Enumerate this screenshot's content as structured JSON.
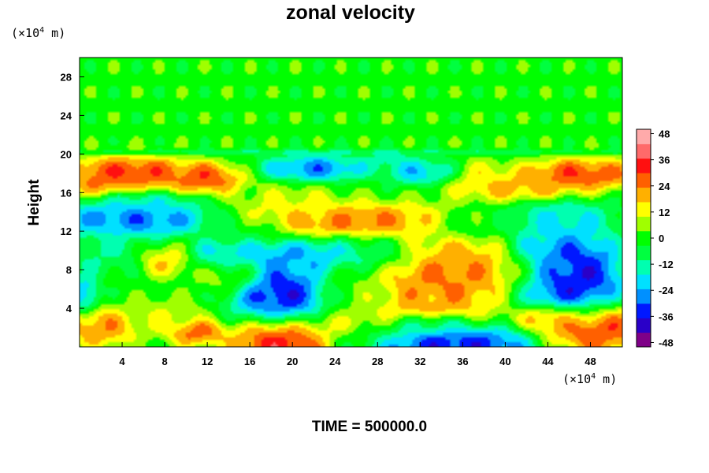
{
  "chart_data": {
    "type": "heatmap",
    "title": "zonal velocity",
    "ylabel": "Height",
    "xlabel": "",
    "x_unit": {
      "prefix": "(×10",
      "exp": "4",
      "suffix": " m)"
    },
    "y_unit": {
      "prefix": "(×10",
      "exp": "4",
      "suffix": " m)"
    },
    "xlim": [
      0,
      51
    ],
    "ylim": [
      0,
      30
    ],
    "xticks": [
      4,
      8,
      12,
      16,
      20,
      24,
      28,
      32,
      36,
      40,
      44,
      48
    ],
    "yticks": [
      4,
      8,
      12,
      16,
      20,
      24,
      28
    ],
    "colorbar": {
      "min": -50,
      "max": 50,
      "ticks": [
        48,
        36,
        24,
        12,
        0,
        -12,
        -24,
        -36,
        -48
      ],
      "colors": [
        "#7f0088",
        "#2a00c8",
        "#0018ff",
        "#0090ff",
        "#00e0ff",
        "#00ffb0",
        "#00ff40",
        "#00ff00",
        "#a0ff00",
        "#ffff00",
        "#ffb000",
        "#ff6000",
        "#ff1010",
        "#ff6a6a",
        "#ffaaaa"
      ]
    },
    "field": {
      "background": 0,
      "x_scale": 7,
      "y_scale": 0.7,
      "blobs": [
        {
          "x": 24,
          "y": 26,
          "rx": 40,
          "ry": 6,
          "v": 0
        },
        {
          "x": 5,
          "y": 18.2,
          "rx": 4.5,
          "ry": 1.4,
          "v": 44
        },
        {
          "x": 12,
          "y": 17.6,
          "rx": 2.8,
          "ry": 1.3,
          "v": 40
        },
        {
          "x": 1.5,
          "y": 17.4,
          "rx": 2,
          "ry": 1.4,
          "v": 30
        },
        {
          "x": 22,
          "y": 18.6,
          "rx": 4,
          "ry": 1.1,
          "v": -42
        },
        {
          "x": 32,
          "y": 18.2,
          "rx": 2.5,
          "ry": 1.1,
          "v": -32
        },
        {
          "x": 29,
          "y": 19.4,
          "rx": 2,
          "ry": 0.8,
          "v": -20
        },
        {
          "x": 47,
          "y": 18,
          "rx": 4.5,
          "ry": 1.3,
          "v": 42
        },
        {
          "x": 41,
          "y": 16.5,
          "rx": 5,
          "ry": 1.1,
          "v": 26
        },
        {
          "x": 38,
          "y": 18,
          "rx": 2,
          "ry": 1.2,
          "v": 18
        },
        {
          "x": 5,
          "y": 13.2,
          "rx": 6,
          "ry": 1.4,
          "v": -38
        },
        {
          "x": 6,
          "y": 15,
          "rx": 4,
          "ry": 0.8,
          "v": -18
        },
        {
          "x": 26,
          "y": 13,
          "rx": 8,
          "ry": 1.5,
          "v": 32
        },
        {
          "x": 20,
          "y": 15,
          "rx": 4,
          "ry": 1.5,
          "v": 14
        },
        {
          "x": 45,
          "y": 13.2,
          "rx": 4,
          "ry": 1.6,
          "v": -22
        },
        {
          "x": 36,
          "y": 12.5,
          "rx": 3,
          "ry": 1.5,
          "v": -10
        },
        {
          "x": 2,
          "y": 10,
          "rx": 4,
          "ry": 2,
          "v": -14
        },
        {
          "x": 8,
          "y": 9,
          "rx": 2.2,
          "ry": 1.3,
          "v": 24
        },
        {
          "x": 14,
          "y": 7.5,
          "rx": 2.5,
          "ry": 1.5,
          "v": 10
        },
        {
          "x": 19,
          "y": 5.3,
          "rx": 3.5,
          "ry": 2.8,
          "v": -48
        },
        {
          "x": 21,
          "y": 9.5,
          "rx": 7,
          "ry": 1.5,
          "v": -30
        },
        {
          "x": 13.5,
          "y": 9.5,
          "rx": 2.5,
          "ry": 1.2,
          "v": -22
        },
        {
          "x": 34,
          "y": 7.5,
          "rx": 5,
          "ry": 3.8,
          "v": 34
        },
        {
          "x": 36,
          "y": 9,
          "rx": 3,
          "ry": 1.8,
          "v": 20
        },
        {
          "x": 40,
          "y": 8,
          "rx": 3,
          "ry": 1.6,
          "v": 26
        },
        {
          "x": 46.5,
          "y": 7,
          "rx": 3.5,
          "ry": 3.8,
          "v": -49
        },
        {
          "x": 43,
          "y": 8.5,
          "rx": 3,
          "ry": 2.5,
          "v": -30
        },
        {
          "x": 32,
          "y": 4.5,
          "rx": 3.5,
          "ry": 2,
          "v": 20
        },
        {
          "x": 26,
          "y": 6,
          "rx": 3,
          "ry": 2.5,
          "v": 4
        },
        {
          "x": 28,
          "y": 10,
          "rx": 4,
          "ry": 1.5,
          "v": -8
        },
        {
          "x": 19,
          "y": 0.6,
          "rx": 3.5,
          "ry": 2.2,
          "v": 48
        },
        {
          "x": 35,
          "y": 0.3,
          "rx": 6,
          "ry": 1.5,
          "v": -48
        },
        {
          "x": 33,
          "y": 2.5,
          "rx": 3,
          "ry": 0.8,
          "v": -24
        },
        {
          "x": 48,
          "y": 2,
          "rx": 4,
          "ry": 2,
          "v": 46
        },
        {
          "x": 44,
          "y": 3,
          "rx": 2,
          "ry": 1,
          "v": 30
        },
        {
          "x": 2,
          "y": 2,
          "rx": 2.5,
          "ry": 1.5,
          "v": 30
        },
        {
          "x": 0.5,
          "y": 5.5,
          "rx": 1,
          "ry": 1.5,
          "v": -28
        },
        {
          "x": 8,
          "y": 3,
          "rx": 3,
          "ry": 1.5,
          "v": 14
        },
        {
          "x": 11,
          "y": 1.5,
          "rx": 2,
          "ry": 1,
          "v": 36
        },
        {
          "x": 25,
          "y": 2,
          "rx": 3,
          "ry": 1.5,
          "v": 16
        },
        {
          "x": 27,
          "y": 1,
          "rx": 3,
          "ry": 1,
          "v": -10
        },
        {
          "x": 16,
          "y": 12,
          "rx": 3,
          "ry": 1.2,
          "v": -6
        },
        {
          "x": 24,
          "y": 20.2,
          "rx": 26,
          "ry": 0.25,
          "v": -16
        }
      ]
    }
  },
  "footer": {
    "time_label": "TIME = 500000.0"
  }
}
